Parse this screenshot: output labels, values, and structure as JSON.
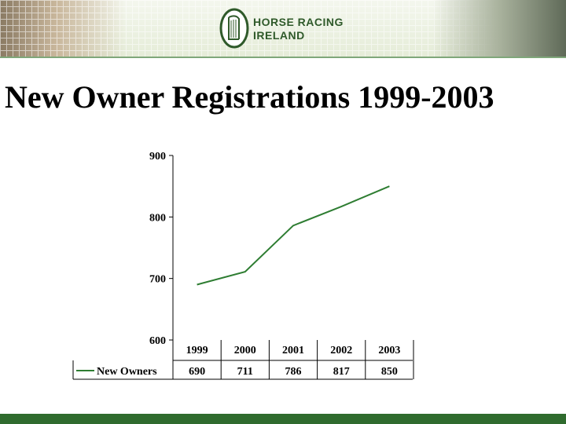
{
  "header": {
    "logo_line1": "HORSE RACING",
    "logo_line2": "IRELAND"
  },
  "title": "New Owner Registrations 1999-2003",
  "chart_data": {
    "type": "line",
    "title": "New Owner Registrations 1999-2003",
    "categories": [
      "1999",
      "2000",
      "2001",
      "2002",
      "2003"
    ],
    "series": [
      {
        "name": "New Owners",
        "values": [
          690,
          711,
          786,
          817,
          850
        ]
      }
    ],
    "ylim": [
      600,
      900
    ],
    "yticks": [
      600,
      700,
      800,
      900
    ],
    "grid": false,
    "legend": "data-table",
    "colors": {
      "series": "#2e7d32"
    }
  }
}
